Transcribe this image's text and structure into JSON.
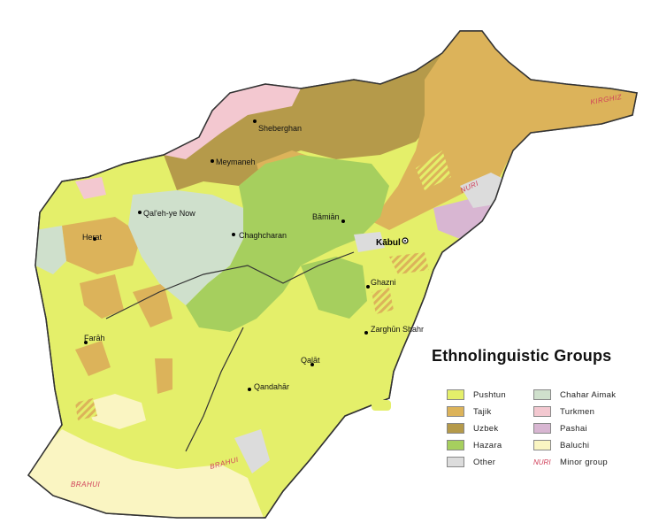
{
  "legend": {
    "title": "Ethnolinguistic Groups",
    "items": [
      {
        "label": "Pushtun",
        "color": "#e4ef6a"
      },
      {
        "label": "Tajik",
        "color": "#dcb35a"
      },
      {
        "label": "Uzbek",
        "color": "#b59a4a"
      },
      {
        "label": "Hazara",
        "color": "#a6cf5e"
      },
      {
        "label": "Other",
        "color": "#dcdcdc"
      },
      {
        "label": "Chahar Aimak",
        "color": "#cfe0cc"
      },
      {
        "label": "Turkmen",
        "color": "#f3c8d0"
      },
      {
        "label": "Pashai",
        "color": "#d8b6d2"
      },
      {
        "label": "Baluchi",
        "color": "#faf5c2"
      }
    ],
    "minor_marker": "NURI",
    "minor_label": "Minor group"
  },
  "cities": {
    "sheberghan": "Sheberghan",
    "meymaneh": "Meymaneh",
    "qaleh_ye_now": "Qal'eh-ye Now",
    "herat": "Herat",
    "chaghcharan": "Chaghcharan",
    "bamian": "Bāmiān",
    "kabul": "Kābul",
    "ghazni": "Ghazni",
    "zarghun_shahr": "Zarghūn Shahr",
    "farah": "Farāh",
    "qalat": "Qalāt",
    "qandahar": "Qandahār"
  },
  "minor_groups": {
    "kirghiz": "KIRGHIZ",
    "nuri": "NURI",
    "brahui_south": "BRAHUI",
    "brahui_southeast": "BRAHUI"
  }
}
